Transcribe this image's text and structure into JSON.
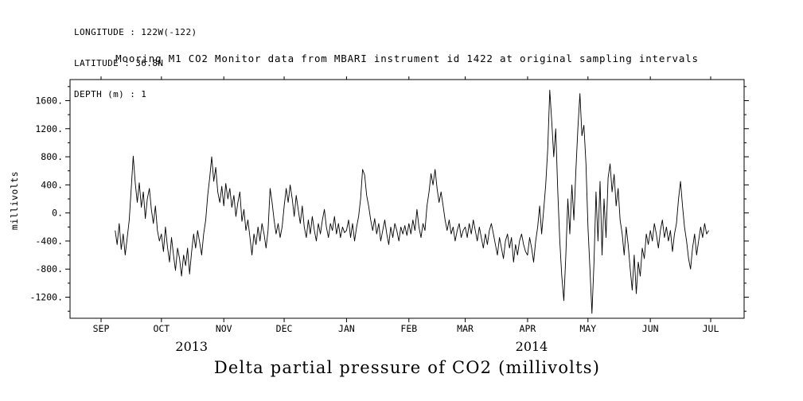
{
  "header": {
    "longitude": "LONGITUDE : 122W(-122)",
    "latitude": "LATITUDE : 36.8N",
    "depth": "DEPTH (m) : 1"
  },
  "title": "Mooring M1 CO2 Monitor data from MBARI instrument id 1422 at original sampling intervals",
  "footer_title": "Delta partial pressure of CO2 (millivolts)",
  "chart_data": {
    "type": "line",
    "title": "Mooring M1 CO2 Monitor data from MBARI instrument id 1422 at original sampling intervals",
    "xlabel": "",
    "ylabel": "millivolts",
    "ylim": [
      -1500,
      1900
    ],
    "grid": false,
    "legend": "none",
    "line_color": "#000000",
    "background_color": "#ffffff",
    "y_ticks": [
      {
        "value": 1600,
        "label": "1600."
      },
      {
        "value": 1200,
        "label": "1200."
      },
      {
        "value": 800,
        "label": "800."
      },
      {
        "value": 400,
        "label": "400."
      },
      {
        "value": 0,
        "label": "0."
      },
      {
        "value": -400,
        "label": "-400."
      },
      {
        "value": -800,
        "label": "-800."
      },
      {
        "value": -1200,
        "label": "-1200."
      }
    ],
    "x_ticks": [
      {
        "day": 0,
        "label": "SEP"
      },
      {
        "day": 30,
        "label": "OCT"
      },
      {
        "day": 61,
        "label": "NOV"
      },
      {
        "day": 91,
        "label": "DEC"
      },
      {
        "day": 122,
        "label": "JAN"
      },
      {
        "day": 153,
        "label": "FEB"
      },
      {
        "day": 181,
        "label": "MAR"
      },
      {
        "day": 212,
        "label": "APR"
      },
      {
        "day": 242,
        "label": "MAY"
      },
      {
        "day": 273,
        "label": "JUN"
      },
      {
        "day": 303,
        "label": "JUL"
      }
    ],
    "year_labels": [
      {
        "label": "2013",
        "day": 45
      },
      {
        "label": "2014",
        "day": 214
      }
    ],
    "series": [
      {
        "name": "delta_pCO2_millivolts",
        "start_day": 7,
        "step_days": 1,
        "values": [
          -250,
          -450,
          -150,
          -520,
          -300,
          -600,
          -350,
          -100,
          350,
          810,
          420,
          150,
          430,
          80,
          300,
          -80,
          200,
          350,
          50,
          -150,
          100,
          -250,
          -400,
          -300,
          -550,
          -200,
          -480,
          -700,
          -350,
          -600,
          -820,
          -500,
          -650,
          -900,
          -600,
          -750,
          -500,
          -870,
          -550,
          -300,
          -500,
          -250,
          -420,
          -600,
          -300,
          -100,
          250,
          500,
          800,
          450,
          650,
          300,
          150,
          380,
          100,
          420,
          200,
          350,
          80,
          250,
          -50,
          150,
          300,
          -120,
          50,
          -250,
          -100,
          -350,
          -600,
          -300,
          -450,
          -200,
          -400,
          -150,
          -300,
          -500,
          -250,
          350,
          150,
          -100,
          -300,
          -150,
          -350,
          -200,
          100,
          350,
          150,
          400,
          200,
          -50,
          250,
          50,
          -150,
          100,
          -200,
          -350,
          -100,
          -300,
          -50,
          -250,
          -400,
          -150,
          -300,
          -100,
          50,
          -200,
          -350,
          -150,
          -250,
          -50,
          -300,
          -150,
          -350,
          -200,
          -280,
          -250,
          -100,
          -350,
          -150,
          -400,
          -200,
          -50,
          200,
          620,
          540,
          250,
          100,
          -100,
          -250,
          -80,
          -300,
          -150,
          -400,
          -250,
          -100,
          -300,
          -450,
          -200,
          -350,
          -150,
          -250,
          -400,
          -200,
          -300,
          -180,
          -320,
          -150,
          -300,
          -100,
          -250,
          50,
          -200,
          -350,
          -150,
          -250,
          100,
          300,
          560,
          400,
          620,
          350,
          150,
          300,
          100,
          -100,
          -250,
          -100,
          -300,
          -200,
          -400,
          -250,
          -150,
          -350,
          -250,
          -200,
          -350,
          -150,
          -300,
          -100,
          -250,
          -400,
          -200,
          -350,
          -500,
          -300,
          -450,
          -250,
          -150,
          -300,
          -450,
          -600,
          -350,
          -500,
          -650,
          -400,
          -300,
          -500,
          -350,
          -700,
          -450,
          -600,
          -400,
          -300,
          -450,
          -550,
          -600,
          -350,
          -500,
          -700,
          -400,
          -200,
          100,
          -300,
          50,
          400,
          900,
          1750,
          1300,
          800,
          1200,
          300,
          -400,
          -900,
          -1250,
          -600,
          200,
          -300,
          400,
          -100,
          600,
          1200,
          1700,
          1100,
          1250,
          700,
          -200,
          -800,
          -1430,
          -700,
          300,
          -400,
          450,
          -600,
          200,
          -350,
          500,
          700,
          300,
          550,
          100,
          350,
          -100,
          -300,
          -600,
          -200,
          -450,
          -800,
          -1100,
          -600,
          -1150,
          -700,
          -900,
          -500,
          -650,
          -300,
          -450,
          -250,
          -400,
          -150,
          -300,
          -500,
          -250,
          -100,
          -350,
          -200,
          -400,
          -250,
          -550,
          -300,
          -150,
          200,
          450,
          100,
          -200,
          -400,
          -650,
          -800,
          -500,
          -300,
          -600,
          -400,
          -200,
          -350,
          -150,
          -300,
          -250
        ]
      }
    ]
  }
}
